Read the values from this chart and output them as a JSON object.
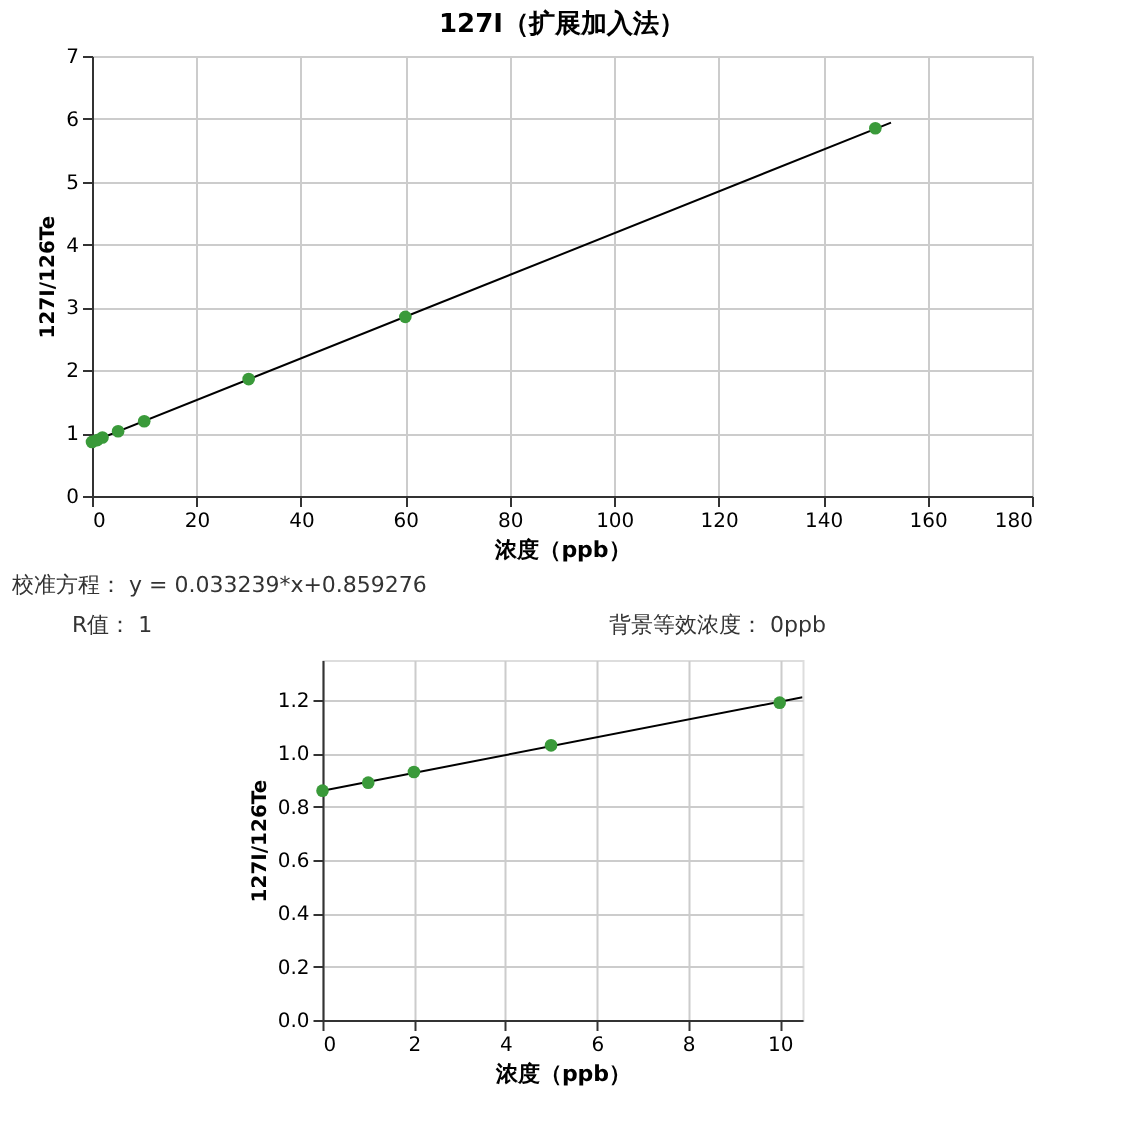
{
  "chart_data": [
    {
      "type": "scatter",
      "title": "127I（扩展加入法）",
      "xlabel": "浓度（ppb）",
      "ylabel": "127I/126Te",
      "xlim": [
        0,
        180
      ],
      "ylim": [
        0,
        7
      ],
      "xticks": [
        0,
        20,
        40,
        60,
        80,
        100,
        120,
        140,
        160,
        180
      ],
      "yticks": [
        0,
        1,
        2,
        3,
        4,
        5,
        6,
        7
      ],
      "grid": true,
      "series": [
        {
          "type": "line",
          "marker": "none",
          "color": "#000000",
          "x": [
            0,
            153
          ],
          "values": [
            0.86,
            5.94
          ]
        },
        {
          "marker": "circle",
          "color": "#3a9a3a",
          "x": [
            0,
            1,
            2,
            5,
            10,
            30,
            60,
            150
          ],
          "values": [
            0.86,
            0.89,
            0.93,
            1.03,
            1.19,
            1.86,
            2.85,
            5.85
          ]
        }
      ],
      "annotations": [
        "校准方程：   y = 0.033239*x+0.859276",
        "R值：   1",
        "背景等效浓度：   0ppb"
      ]
    },
    {
      "type": "scatter",
      "xlabel": "浓度（ppb）",
      "ylabel": "127I/126Te",
      "xlim": [
        0,
        10.5
      ],
      "ylim": [
        0,
        1.35
      ],
      "xticks": [
        0,
        2,
        4,
        6,
        8,
        10
      ],
      "yticks": [
        {
          "value": 0,
          "label": "0.0"
        },
        {
          "value": 0.2,
          "label": "0.2"
        },
        {
          "value": 0.4,
          "label": "0.4"
        },
        {
          "value": 0.6,
          "label": "0.6"
        },
        {
          "value": 0.8,
          "label": "0.8"
        },
        {
          "value": 1,
          "label": "1.0"
        },
        {
          "value": 1.2,
          "label": "1.2"
        }
      ],
      "grid": true,
      "series": [
        {
          "type": "line",
          "marker": "none",
          "color": "#000000",
          "x": [
            0,
            10.5
          ],
          "values": [
            0.86,
            1.21
          ]
        },
        {
          "marker": "circle",
          "color": "#3a9a3a",
          "x": [
            0,
            1,
            2,
            5,
            10
          ],
          "values": [
            0.86,
            0.89,
            0.93,
            1.03,
            1.19
          ]
        }
      ]
    }
  ]
}
